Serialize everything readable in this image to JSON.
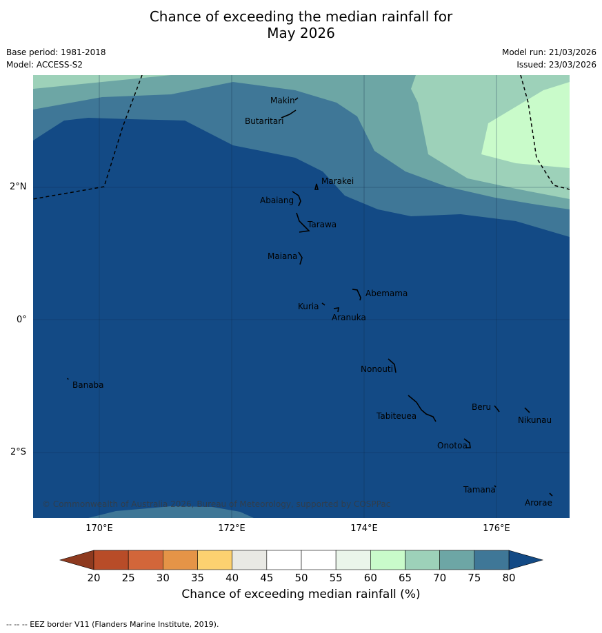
{
  "header": {
    "title_line1": "Chance of exceeding the median rainfall for",
    "title_line2": "May 2026",
    "base_period": "Base period: 1981-2018",
    "model": "Model: ACCESS-S2",
    "model_run": "Model run: 21/03/2026",
    "issued": "Issued: 23/03/2026"
  },
  "map": {
    "lat_labels": [
      "2°N",
      "0°",
      "2°S"
    ],
    "lon_labels": [
      "170°E",
      "172°E",
      "174°E",
      "176°E"
    ],
    "places": [
      "Makin",
      "Butaritari",
      "Marakei",
      "Abaiang",
      "Tarawa",
      "Maiana",
      "Abemama",
      "Kuria",
      "Aranuka",
      "Nonouti",
      "Banaba",
      "Beru",
      "Nikunau",
      "Tabiteuea",
      "Onotoa",
      "Tamana",
      "Arorae"
    ],
    "copyright": "© Commonwealth of Australia 2026, Bureau of Meteorology, supported by COSPPac"
  },
  "colorbar": {
    "ticks": [
      "20",
      "25",
      "30",
      "35",
      "40",
      "45",
      "50",
      "55",
      "60",
      "65",
      "70",
      "75",
      "80"
    ],
    "colors": [
      "#b84c28",
      "#d2663a",
      "#e59447",
      "#fcd170",
      "#e9e9e4",
      "#ffffff",
      "#ffffff",
      "#eaf5ea",
      "#c9fbca",
      "#9dd1b9",
      "#6da6a5",
      "#3f7797"
    ],
    "low_extend_color": "#8e3a1f",
    "high_extend_color": "#134a85",
    "label": "Chance of exceeding median rainfall (%)"
  },
  "footnote": "-- -- -- EEZ border V11 (Flanders Marine Institute, 2019)."
}
